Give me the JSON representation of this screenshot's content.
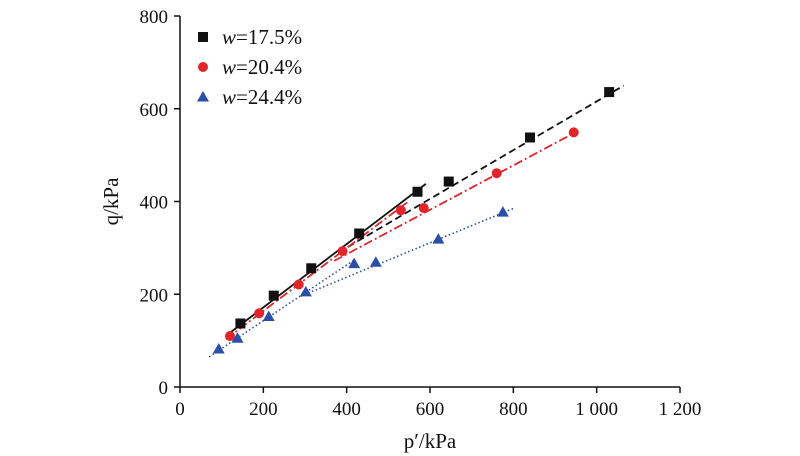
{
  "chart_data": {
    "type": "scatter",
    "title": "",
    "xlabel": "p′/kPa",
    "ylabel": "q/kPa",
    "xlim": [
      0,
      1200
    ],
    "ylim": [
      0,
      800
    ],
    "x_ticks": [
      0,
      200,
      400,
      600,
      800,
      1000,
      1200
    ],
    "x_tick_labels": [
      "0",
      "200",
      "400",
      "600",
      "800",
      "1 000",
      "1 200"
    ],
    "y_ticks": [
      0,
      200,
      400,
      600,
      800
    ],
    "y_tick_labels": [
      "0",
      "200",
      "400",
      "600",
      "800"
    ],
    "grid": false,
    "legend": "top-left",
    "series": [
      {
        "name": "w=17.5%",
        "legend_var": "w",
        "legend_rest": "=17.5%",
        "marker": "square",
        "color": "#111111",
        "x": [
          145,
          225,
          315,
          430,
          570,
          645,
          840,
          1030
        ],
        "y": [
          137,
          197,
          256,
          331,
          421,
          443,
          538,
          636
        ],
        "fit_lines": [
          {
            "style": "solid",
            "x": [
              120,
              590
            ],
            "y": [
              117,
              438
            ]
          },
          {
            "style": "dashed",
            "x": [
              380,
              1065
            ],
            "y": [
              290,
              650
            ]
          }
        ]
      },
      {
        "name": "w=20.4%",
        "legend_var": "w",
        "legend_rest": "=20.4%",
        "marker": "circle",
        "color": "#e2252b",
        "x": [
          120,
          190,
          285,
          390,
          530,
          585,
          760,
          945
        ],
        "y": [
          110,
          159,
          221,
          293,
          381,
          386,
          461,
          549
        ],
        "fit_lines": [
          {
            "style": "dashdot",
            "x": [
              110,
              545
            ],
            "y": [
              103,
              398
            ]
          },
          {
            "style": "dashdot",
            "x": [
              370,
              955
            ],
            "y": [
              272,
              552
            ]
          }
        ]
      },
      {
        "name": "w=24.4%",
        "legend_var": "w",
        "legend_rest": "=24.4%",
        "marker": "triangle",
        "color": "#2b4fa8",
        "x": [
          93,
          138,
          213,
          302,
          418,
          470,
          620,
          775
        ],
        "y": [
          82,
          105,
          152,
          205,
          266,
          269,
          319,
          377
        ],
        "fit_lines": [
          {
            "style": "dotted",
            "x": [
              70,
              420
            ],
            "y": [
              65,
              275
            ]
          },
          {
            "style": "dotted",
            "x": [
              290,
              800
            ],
            "y": [
              196,
              385
            ]
          }
        ]
      }
    ]
  }
}
